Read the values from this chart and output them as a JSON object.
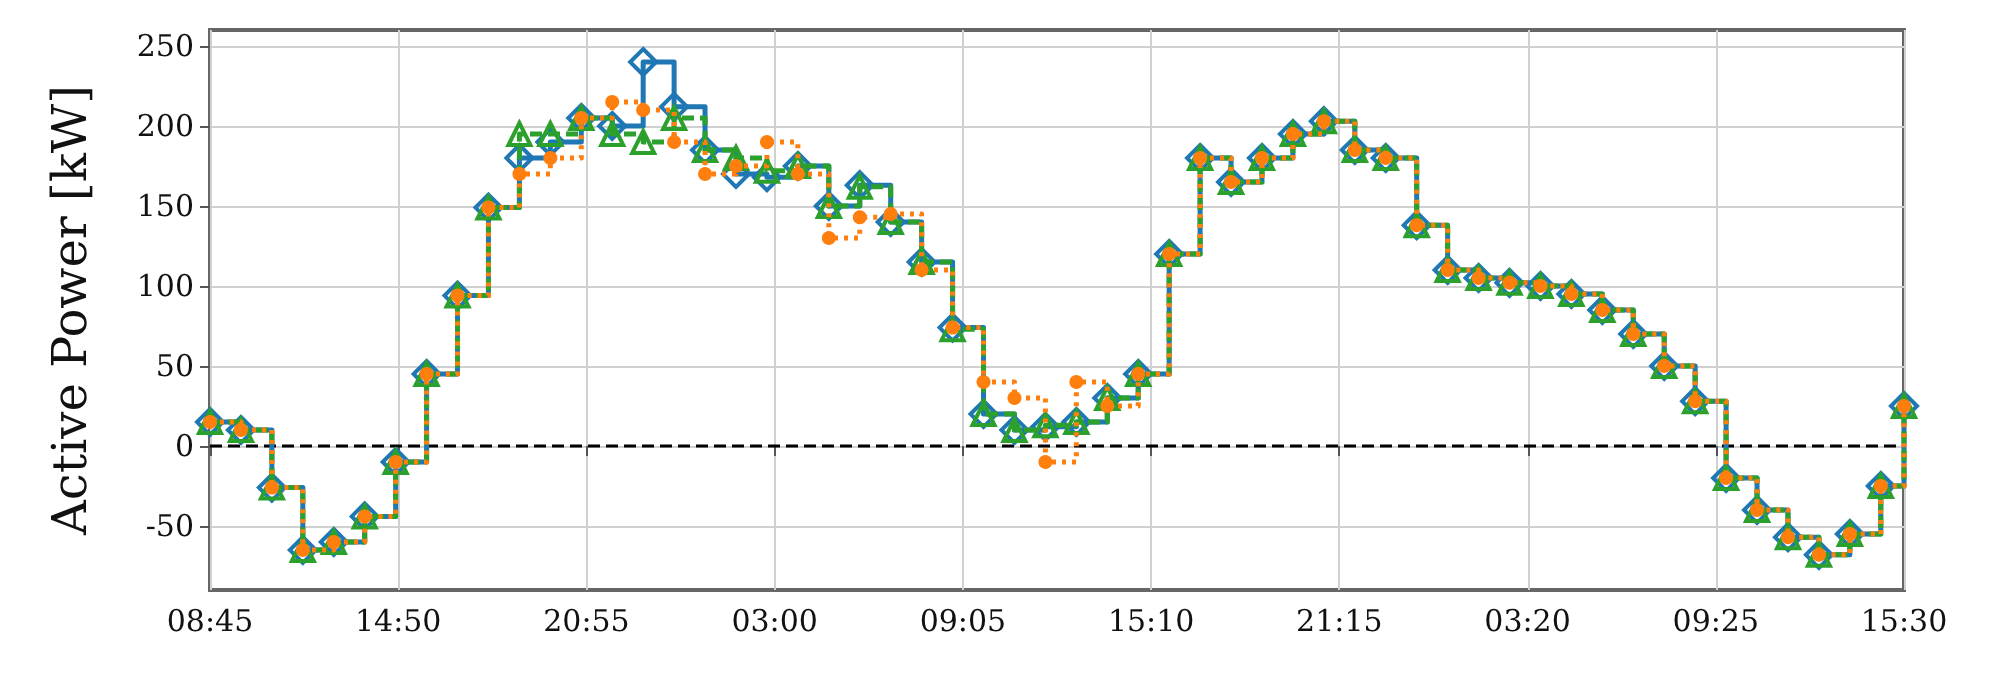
{
  "chart_data": {
    "type": "step",
    "ylabel": "Active Power [kW]",
    "x": [
      "--01-01T08:45",
      "--01-01T09:45",
      "--01-01T10:45",
      "--01-01T11:45",
      "--01-01T12:45",
      "--01-01T13:45",
      "--01-01T14:45",
      "--01-01T15:45",
      "--01-01T16:45",
      "--01-01T17:45",
      "--01-01T18:45",
      "--01-01T19:45",
      "--01-01T20:45",
      "--01-01T21:45",
      "--01-01T22:45",
      "--01-01T23:45",
      "--01-02T00:45",
      "--01-02T01:45",
      "--01-02T02:45",
      "--01-02T03:45",
      "--01-02T04:45",
      "--01-02T05:45",
      "--01-02T06:45",
      "--01-02T07:45",
      "--01-02T08:45",
      "--01-02T09:45",
      "--01-02T10:45",
      "--01-02T11:45",
      "--01-02T12:45",
      "--01-02T13:45",
      "--01-02T14:45",
      "--01-02T15:45",
      "--01-02T16:45",
      "--01-02T17:45",
      "--01-02T18:45",
      "--01-02T19:45",
      "--01-02T20:45",
      "--01-02T21:45",
      "--01-02T22:45",
      "--01-02T23:45",
      "--01-03T00:45",
      "--01-03T01:45",
      "--01-03T02:45",
      "--01-03T03:45",
      "--01-03T04:45",
      "--01-03T05:45",
      "--01-03T06:45",
      "--01-03T07:45",
      "--01-03T08:45",
      "--01-03T09:45",
      "--01-03T10:45",
      "--01-03T11:45",
      "--01-03T12:45",
      "--01-03T13:45",
      "--01-03T14:45",
      "--01-03T15:30"
    ],
    "series": [
      {
        "color": "#1f77b4",
        "marker": "diamond",
        "line_style": "solid",
        "values": [
          15,
          10,
          -26,
          -65,
          -60,
          -44,
          -10,
          45,
          94,
          149,
          180,
          190,
          205,
          200,
          240,
          212,
          185,
          170,
          168,
          175,
          150,
          163,
          140,
          115,
          74,
          20,
          10,
          12,
          15,
          30,
          45,
          120,
          180,
          165,
          180,
          195,
          203,
          185,
          180,
          138,
          110,
          105,
          102,
          100,
          95,
          85,
          70,
          50,
          28,
          -20,
          -40,
          -57,
          -68,
          -55,
          -25,
          25
        ]
      },
      {
        "color": "#2ca02c",
        "marker": "triangle",
        "line_style": "dashed",
        "values": [
          15,
          10,
          -26,
          -65,
          -60,
          -44,
          -10,
          45,
          94,
          149,
          195,
          195,
          205,
          195,
          190,
          205,
          185,
          180,
          172,
          175,
          150,
          162,
          140,
          115,
          73,
          20,
          10,
          13,
          15,
          30,
          45,
          120,
          180,
          165,
          180,
          195,
          203,
          185,
          180,
          138,
          110,
          105,
          102,
          100,
          95,
          85,
          70,
          50,
          28,
          -20,
          -40,
          -57,
          -68,
          -55,
          -25,
          25
        ]
      },
      {
        "color": "#ff7f0e",
        "marker": "circle",
        "line_style": "dotted",
        "values": [
          15,
          10,
          -26,
          -65,
          -60,
          -44,
          -10,
          45,
          94,
          149,
          170,
          180,
          205,
          215,
          210,
          190,
          170,
          175,
          190,
          170,
          130,
          143,
          145,
          110,
          74,
          40,
          30,
          -10,
          40,
          25,
          45,
          120,
          180,
          165,
          180,
          195,
          203,
          185,
          180,
          138,
          110,
          105,
          102,
          100,
          95,
          85,
          70,
          50,
          28,
          -20,
          -40,
          -57,
          -68,
          -55,
          -25,
          25
        ]
      }
    ],
    "xlim": [
      "--01-01T08:45",
      "--01-03T15:30"
    ],
    "xticks": [
      {
        "value": "--01-01T08:45",
        "label": "08:45"
      },
      {
        "value": "--01-01T14:50",
        "label": "14:50"
      },
      {
        "value": "--01-01T20:55",
        "label": "20:55"
      },
      {
        "value": "--01-02T03:00",
        "label": "03:00"
      },
      {
        "value": "--01-02T09:05",
        "label": "09:05"
      },
      {
        "value": "--01-02T15:10",
        "label": "15:10"
      },
      {
        "value": "--01-02T21:15",
        "label": "21:15"
      },
      {
        "value": "--01-03T03:20",
        "label": "03:20"
      },
      {
        "value": "--01-03T09:25",
        "label": "09:25"
      },
      {
        "value": "--01-03T15:30",
        "label": "15:30"
      }
    ],
    "ylim": [
      -90,
      260
    ],
    "yticks": [
      -50,
      0,
      50,
      100,
      150,
      200,
      250
    ],
    "ref_lines": [
      {
        "axis": "y",
        "value": 0,
        "color": "#000000",
        "line_style": "dashed"
      }
    ],
    "grid": true
  }
}
